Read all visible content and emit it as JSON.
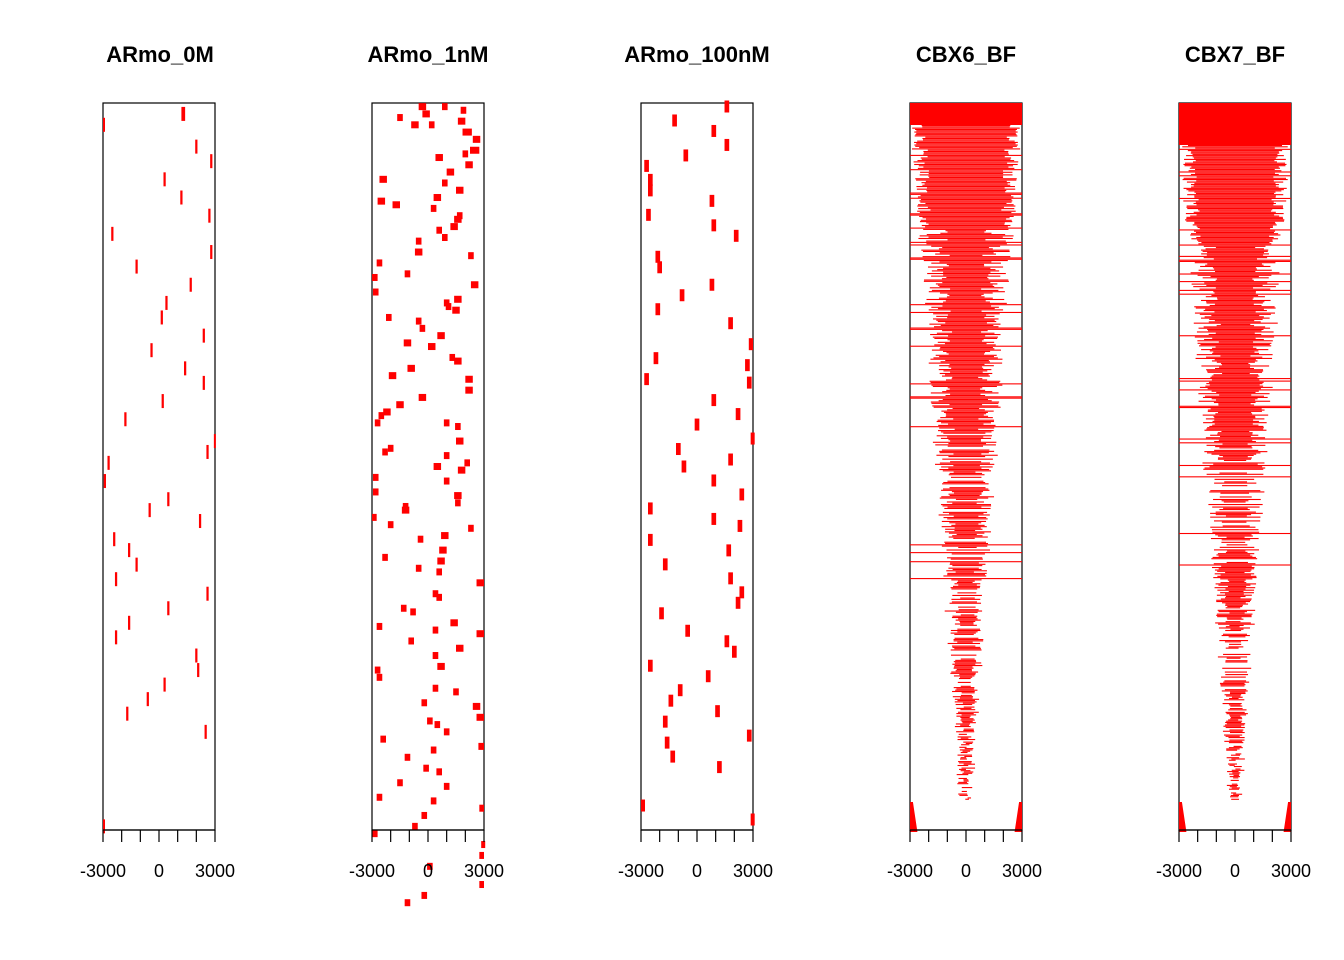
{
  "chart_data": {
    "type": "heatmap",
    "description_note": "",
    "fill_color": "#ff0000",
    "xlim": [
      -3000,
      3000
    ],
    "x_ticks": [
      -3000,
      -2000,
      -1000,
      0,
      1000,
      2000,
      3000
    ],
    "x_tick_labels": [
      "-3000",
      "0",
      "3000"
    ],
    "x_labeled_ticks": [
      -3000,
      0,
      3000
    ],
    "panels": [
      {
        "title": "ARmo_0M",
        "rows": 100,
        "segments": [
          [
            1.5,
            1300,
            200
          ],
          [
            3.0,
            -3000,
            150
          ],
          [
            6.0,
            2000,
            120
          ],
          [
            8.0,
            2800,
            120
          ],
          [
            10.5,
            300,
            120
          ],
          [
            13.0,
            1200,
            120
          ],
          [
            15.5,
            2700,
            120
          ],
          [
            18.0,
            -2500,
            120
          ],
          [
            20.5,
            2800,
            120
          ],
          [
            22.5,
            -1200,
            120
          ],
          [
            25.0,
            1700,
            120
          ],
          [
            27.5,
            400,
            120
          ],
          [
            29.5,
            150,
            120
          ],
          [
            32.0,
            2400,
            120
          ],
          [
            34.0,
            -400,
            120
          ],
          [
            36.5,
            1400,
            120
          ],
          [
            38.5,
            2400,
            120
          ],
          [
            41.0,
            200,
            120
          ],
          [
            43.5,
            -1800,
            120
          ],
          [
            46.5,
            3000,
            120
          ],
          [
            48.0,
            2600,
            120
          ],
          [
            49.5,
            -2700,
            120
          ],
          [
            52.0,
            -2900,
            120
          ],
          [
            54.5,
            500,
            120
          ],
          [
            56.0,
            -500,
            120
          ],
          [
            57.5,
            2200,
            120
          ],
          [
            60.0,
            -2400,
            120
          ],
          [
            61.5,
            -1600,
            120
          ],
          [
            63.5,
            -1200,
            120
          ],
          [
            65.5,
            -2300,
            120
          ],
          [
            67.5,
            2600,
            120
          ],
          [
            69.5,
            500,
            120
          ],
          [
            71.5,
            -1600,
            120
          ],
          [
            73.5,
            -2300,
            120
          ],
          [
            76.0,
            2000,
            120
          ],
          [
            78.0,
            2100,
            120
          ],
          [
            80.0,
            300,
            120
          ],
          [
            82.0,
            -600,
            120
          ],
          [
            84.0,
            -1700,
            120
          ],
          [
            86.5,
            2500,
            120
          ],
          [
            99.5,
            -3000,
            120
          ]
        ]
      },
      {
        "title": "ARmo_1nM",
        "rows": 100,
        "segments": [
          [
            0.5,
            -300,
            400
          ],
          [
            0.5,
            900,
            300
          ],
          [
            1.0,
            1900,
            300
          ],
          [
            1.5,
            -100,
            400
          ],
          [
            2.0,
            -1500,
            300
          ],
          [
            2.5,
            1800,
            400
          ],
          [
            3.0,
            -700,
            400
          ],
          [
            3.0,
            200,
            300
          ],
          [
            4.0,
            2100,
            500
          ],
          [
            5.0,
            2600,
            400
          ],
          [
            6.5,
            2500,
            500
          ],
          [
            7.0,
            2000,
            300
          ],
          [
            7.5,
            600,
            400
          ],
          [
            8.5,
            2200,
            400
          ],
          [
            9.5,
            1200,
            400
          ],
          [
            10.5,
            -2400,
            400
          ],
          [
            11.0,
            900,
            300
          ],
          [
            12.0,
            1700,
            400
          ],
          [
            13.0,
            500,
            400
          ],
          [
            13.5,
            -2500,
            400
          ],
          [
            14.0,
            -1700,
            400
          ],
          [
            14.5,
            300,
            300
          ],
          [
            15.5,
            1700,
            300
          ],
          [
            16.0,
            1600,
            400
          ],
          [
            17.0,
            1400,
            400
          ],
          [
            17.5,
            600,
            300
          ],
          [
            18.5,
            900,
            300
          ],
          [
            19.0,
            -500,
            300
          ],
          [
            20.5,
            -500,
            400
          ],
          [
            21.0,
            2300,
            300
          ],
          [
            22.0,
            -2600,
            300
          ],
          [
            23.5,
            -1100,
            300
          ],
          [
            24.0,
            -2900,
            400
          ],
          [
            25.0,
            2500,
            400
          ],
          [
            26.0,
            -2800,
            300
          ],
          [
            27.0,
            1600,
            400
          ],
          [
            27.5,
            1000,
            300
          ],
          [
            28.0,
            1100,
            300
          ],
          [
            28.5,
            1500,
            400
          ],
          [
            29.5,
            -2100,
            300
          ],
          [
            30.0,
            -500,
            300
          ],
          [
            31.0,
            -300,
            300
          ],
          [
            32.0,
            700,
            400
          ],
          [
            33.0,
            -1100,
            400
          ],
          [
            33.5,
            200,
            400
          ],
          [
            35.0,
            1300,
            300
          ],
          [
            35.5,
            1600,
            400
          ],
          [
            36.5,
            -900,
            400
          ],
          [
            37.5,
            -1900,
            400
          ],
          [
            38.0,
            2200,
            400
          ],
          [
            39.5,
            2200,
            400
          ],
          [
            40.5,
            -300,
            400
          ],
          [
            41.5,
            -1500,
            400
          ],
          [
            42.5,
            -2200,
            400
          ],
          [
            43.0,
            -2500,
            300
          ],
          [
            44.0,
            -2700,
            300
          ],
          [
            44.0,
            1000,
            300
          ],
          [
            44.5,
            1600,
            300
          ],
          [
            46.5,
            1700,
            400
          ],
          [
            47.5,
            -2000,
            300
          ],
          [
            48.0,
            -2300,
            300
          ],
          [
            48.5,
            1000,
            300
          ],
          [
            49.5,
            2100,
            300
          ],
          [
            50.0,
            500,
            400
          ],
          [
            50.5,
            1800,
            400
          ],
          [
            51.5,
            -2800,
            300
          ],
          [
            52.0,
            1000,
            300
          ],
          [
            53.5,
            -2800,
            300
          ],
          [
            54.0,
            1600,
            400
          ],
          [
            55.0,
            1600,
            300
          ],
          [
            55.5,
            -1200,
            300
          ],
          [
            56.0,
            -1200,
            400
          ],
          [
            57.0,
            -2900,
            300
          ],
          [
            58.0,
            -2000,
            300
          ],
          [
            58.5,
            2300,
            300
          ],
          [
            59.5,
            900,
            400
          ],
          [
            60.0,
            -400,
            300
          ],
          [
            61.5,
            800,
            400
          ],
          [
            62.5,
            -2300,
            300
          ],
          [
            63.0,
            700,
            400
          ],
          [
            64.0,
            -500,
            300
          ],
          [
            64.5,
            600,
            300
          ],
          [
            66.0,
            2800,
            400
          ],
          [
            67.5,
            400,
            300
          ],
          [
            68.0,
            600,
            300
          ],
          [
            69.5,
            -1300,
            300
          ],
          [
            70.0,
            -800,
            300
          ],
          [
            71.5,
            1400,
            400
          ],
          [
            72.0,
            -2600,
            300
          ],
          [
            72.5,
            400,
            300
          ],
          [
            73.0,
            2800,
            400
          ],
          [
            74.0,
            -900,
            300
          ],
          [
            75.0,
            1700,
            400
          ],
          [
            76.0,
            400,
            300
          ],
          [
            77.5,
            700,
            400
          ],
          [
            78.0,
            -2700,
            300
          ],
          [
            79.0,
            -2600,
            300
          ],
          [
            80.5,
            400,
            300
          ],
          [
            81.0,
            1500,
            300
          ],
          [
            82.5,
            -200,
            300
          ],
          [
            83.0,
            2600,
            400
          ],
          [
            84.5,
            2800,
            400
          ],
          [
            85.0,
            100,
            300
          ],
          [
            85.5,
            500,
            300
          ],
          [
            86.5,
            1000,
            300
          ],
          [
            87.5,
            -2400,
            300
          ],
          [
            88.5,
            2900,
            400
          ],
          [
            89.0,
            300,
            300
          ],
          [
            90.0,
            -1100,
            300
          ],
          [
            91.5,
            -100,
            300
          ],
          [
            92.0,
            600,
            300
          ],
          [
            93.5,
            -1500,
            300
          ],
          [
            94.0,
            1000,
            300
          ],
          [
            95.5,
            -2600,
            300
          ],
          [
            96.0,
            300,
            300
          ],
          [
            97.0,
            2900,
            300
          ],
          [
            98.0,
            -200,
            300
          ],
          [
            99.5,
            -700,
            300
          ],
          [
            100.5,
            -2900,
            400
          ],
          [
            102.0,
            3000,
            300
          ],
          [
            103.5,
            2900,
            300
          ],
          [
            105.0,
            100,
            300
          ],
          [
            107.5,
            2900,
            300
          ],
          [
            109.0,
            -200,
            300
          ],
          [
            110.0,
            -1100,
            300
          ],
          [
            119.0,
            -3000,
            200
          ],
          [
            121.5,
            -3000,
            200
          ],
          [
            122.0,
            3000,
            200
          ]
        ],
        "row_scale": 100
      },
      {
        "title": "ARmo_100nM",
        "rows": 100,
        "segments": [
          [
            0.5,
            1600,
            250
          ],
          [
            2.5,
            -1200,
            250
          ],
          [
            4.0,
            900,
            250
          ],
          [
            6.0,
            1600,
            250
          ],
          [
            7.5,
            -600,
            250
          ],
          [
            9.0,
            -2700,
            250
          ],
          [
            11.0,
            -2500,
            250
          ],
          [
            12.5,
            -2500,
            250
          ],
          [
            14.0,
            800,
            250
          ],
          [
            16.0,
            -2600,
            250
          ],
          [
            17.5,
            900,
            250
          ],
          [
            19.0,
            2100,
            250
          ],
          [
            22.0,
            -2100,
            250
          ],
          [
            23.5,
            -2000,
            250
          ],
          [
            26.0,
            800,
            250
          ],
          [
            27.5,
            -800,
            250
          ],
          [
            29.5,
            -2100,
            250
          ],
          [
            31.5,
            1800,
            250
          ],
          [
            34.5,
            2900,
            250
          ],
          [
            36.5,
            -2200,
            250
          ],
          [
            37.5,
            2700,
            250
          ],
          [
            39.5,
            -2700,
            250
          ],
          [
            40.0,
            2800,
            250
          ],
          [
            42.5,
            900,
            250
          ],
          [
            44.5,
            2200,
            250
          ],
          [
            46.0,
            0,
            250
          ],
          [
            48.0,
            3000,
            250
          ],
          [
            49.5,
            -1000,
            250
          ],
          [
            51.0,
            1800,
            250
          ],
          [
            52.0,
            -700,
            250
          ],
          [
            54.0,
            900,
            250
          ],
          [
            56.0,
            2400,
            250
          ],
          [
            58.0,
            -2500,
            250
          ],
          [
            59.5,
            900,
            250
          ],
          [
            60.5,
            2300,
            250
          ],
          [
            62.5,
            -2500,
            250
          ],
          [
            64.0,
            1700,
            250
          ],
          [
            66.0,
            -1700,
            250
          ],
          [
            68.0,
            1800,
            250
          ],
          [
            70.0,
            2400,
            250
          ],
          [
            71.5,
            2200,
            250
          ],
          [
            73.0,
            -1900,
            250
          ],
          [
            75.5,
            -500,
            250
          ],
          [
            77.0,
            1600,
            250
          ],
          [
            78.5,
            2000,
            250
          ],
          [
            80.5,
            -2500,
            250
          ],
          [
            82.0,
            600,
            250
          ],
          [
            84.0,
            -900,
            250
          ],
          [
            85.5,
            -1400,
            250
          ],
          [
            87.0,
            1100,
            250
          ],
          [
            88.5,
            -1700,
            250
          ],
          [
            90.5,
            2800,
            250
          ],
          [
            91.5,
            -1600,
            250
          ],
          [
            93.5,
            -1300,
            250
          ],
          [
            95.0,
            1200,
            250
          ],
          [
            100.5,
            -3000,
            250
          ],
          [
            102.5,
            3000,
            250
          ]
        ],
        "row_scale": 104
      },
      {
        "title": "CBX6_BF",
        "rows": 1,
        "density_profile": "v-shape-dense"
      },
      {
        "title": "CBX7_BF",
        "rows": 1,
        "density_profile": "v-shape-dense"
      }
    ]
  }
}
